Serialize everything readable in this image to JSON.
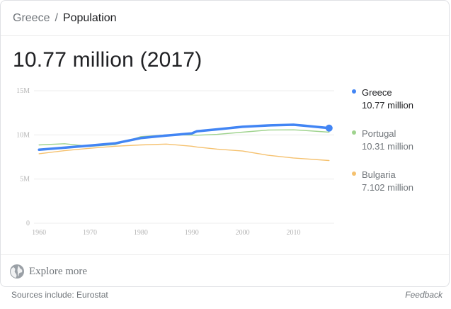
{
  "breadcrumb": {
    "parent": "Greece",
    "separator": "/",
    "current": "Population"
  },
  "headline": "10.77 million (2017)",
  "chart_data": {
    "type": "line",
    "x": [
      1960,
      1965,
      1970,
      1975,
      1980,
      1985,
      1990,
      1991,
      1995,
      2000,
      2005,
      2010,
      2012,
      2017
    ],
    "xticks": [
      1960,
      1970,
      1980,
      1990,
      2000,
      2010
    ],
    "xtick_labels": [
      "1960",
      "1970",
      "1980",
      "1990",
      "2000",
      "2010"
    ],
    "yticks": [
      0,
      5000000,
      10000000,
      15000000
    ],
    "ytick_labels": [
      "0",
      "5M",
      "10M",
      "15M"
    ],
    "xlim": [
      1960,
      2017
    ],
    "ylim": [
      0,
      15000000
    ],
    "grid": true,
    "legend_position": "right",
    "series": [
      {
        "name": "Greece",
        "color": "#4285f4",
        "highlight": true,
        "value_label": "10.77 million",
        "values": [
          8330000,
          8550000,
          8790000,
          9050000,
          9640000,
          9930000,
          10160000,
          10400000,
          10630000,
          10920000,
          11070000,
          11150000,
          11050000,
          10770000
        ]
      },
      {
        "name": "Portugal",
        "color": "#9fd38e",
        "value_label": "10.31 million",
        "values": [
          8860000,
          9000000,
          8700000,
          8900000,
          9800000,
          10000000,
          9990000,
          9960000,
          10060000,
          10310000,
          10550000,
          10570000,
          10510000,
          10310000
        ]
      },
      {
        "name": "Bulgaria",
        "color": "#f5c16e",
        "value_label": "7.102 million",
        "values": [
          7870000,
          8210000,
          8490000,
          8720000,
          8860000,
          8960000,
          8720000,
          8630000,
          8390000,
          8170000,
          7690000,
          7390000,
          7310000,
          7102000
        ]
      }
    ]
  },
  "explore": {
    "icon": "globe-icon",
    "label": "Explore more"
  },
  "sources": "Sources include: Eurostat",
  "feedback": "Feedback"
}
